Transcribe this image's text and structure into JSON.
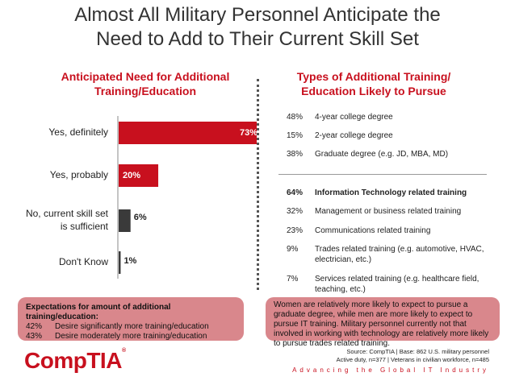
{
  "title": [
    "Almost All Military Personnel Anticipate the",
    "Need to Add to Their Current Skill Set"
  ],
  "left_heading": [
    "Anticipated Need for Additional",
    "Training/Education"
  ],
  "right_heading": [
    "Types of Additional Training/",
    "Education Likely to Pursue"
  ],
  "chart_data": {
    "type": "bar",
    "orientation": "horizontal",
    "title": "Anticipated Need for Additional Training/Education",
    "categories": [
      "Yes, definitely",
      "Yes, probably",
      "No, current skill set is sufficient",
      "Don't Know"
    ],
    "category_lines": [
      [
        "Yes, definitely"
      ],
      [
        "Yes, probably"
      ],
      [
        "No, current skill set",
        "is sufficient"
      ],
      [
        "Don't Know"
      ]
    ],
    "values": [
      73,
      20,
      6,
      1
    ],
    "value_labels": [
      "73%",
      "20%",
      "6%",
      "1%"
    ],
    "bar_colors": [
      "#c8101e",
      "#c8101e",
      "#3a3a3a",
      "#3a3a3a"
    ],
    "xlim": [
      0,
      100
    ],
    "grid": false,
    "legend": "none"
  },
  "training_types": [
    {
      "pct": "48%",
      "label": "4-year college degree",
      "bold": false
    },
    {
      "pct": "15%",
      "label": "2-year college degree",
      "bold": false
    },
    {
      "pct": "38%",
      "label": "Graduate degree (e.g. JD, MBA, MD)",
      "bold": false
    },
    {
      "pct": "64%",
      "label": "Information Technology related training",
      "bold": true
    },
    {
      "pct": "32%",
      "label": "Management or business related training",
      "bold": false
    },
    {
      "pct": "23%",
      "label": "Communications related training",
      "bold": false
    },
    {
      "pct": "9%",
      "label": "Trades related training (e.g. automotive, HVAC, electrician, etc.)",
      "bold": false
    },
    {
      "pct": "7%",
      "label": "Services related training (e.g. healthcare field, teaching, etc.)",
      "bold": false
    }
  ],
  "expectations": {
    "heading": "Expectations for amount of additional training/education:",
    "rows": [
      {
        "pct": "42%",
        "label": "Desire significantly more training/education"
      },
      {
        "pct": "43%",
        "label": "Desire moderately more training/education"
      }
    ]
  },
  "insight": "Women are relatively more likely to expect to pursue a graduate degree, while men are more likely to expect to pursue IT training. Military personnel currently not that involved in working with technology are relatively more likely to pursue trades related training.",
  "source": [
    "Source: CompTIA | Base: 862 U.S. military personnel",
    "Active duty, n=377 | Veterans in civilian workforce, n=485"
  ],
  "tagline": "Advancing the Global IT Industry",
  "logo_text": "CompTIA",
  "logo_tm": "®",
  "colors": {
    "accent": "#c8101e",
    "dark_bar": "#3a3a3a",
    "callout": "#d9878c"
  }
}
